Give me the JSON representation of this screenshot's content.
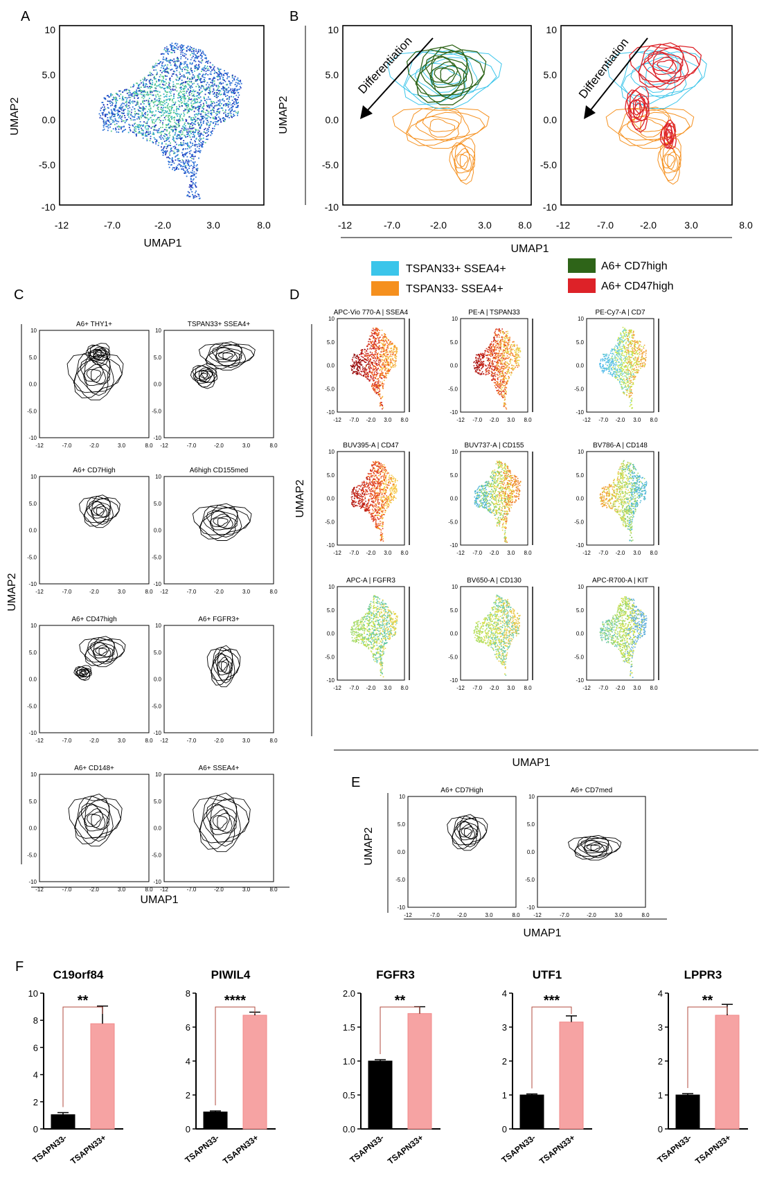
{
  "figure": {
    "panel_labels": [
      "A",
      "B",
      "C",
      "D",
      "E",
      "F"
    ]
  },
  "chart_data": [
    {
      "panel": "A",
      "type": "scatter",
      "xlabel": "UMAP1",
      "ylabel": "UMAP2",
      "xlim": [
        -12,
        8
      ],
      "ylim": [
        -10,
        10
      ],
      "x_ticks": [
        "-12",
        "-7.0",
        "-2.0",
        "3.0",
        "8.0"
      ],
      "y_ticks": [
        "10",
        "5.0",
        "0.0",
        "-5.0",
        "-10"
      ],
      "colors": [
        "#1c2fb5",
        "#2a6fd6",
        "#2fb0c8",
        "#58c98a"
      ]
    },
    {
      "panel": "B",
      "type": "contour",
      "xlabel": "UMAP1",
      "ylabel": "UMAP2",
      "arrow_label": "Differentiation",
      "xlim": [
        -12,
        8
      ],
      "ylim": [
        -10,
        10
      ],
      "x_ticks": [
        "-12",
        "-7.0",
        "-2.0",
        "3.0",
        "8.0"
      ],
      "y_ticks": [
        "10",
        "5.0",
        "0.0",
        "-5.0",
        "-10"
      ],
      "legend": [
        {
          "name": "TSPAN33+ SSEA4+",
          "color": "#3bc5ea"
        },
        {
          "name": "TSPAN33- SSEA4+",
          "color": "#f5901e"
        },
        {
          "name": "A6+ CD7high",
          "color": "#2e6418"
        },
        {
          "name": "A6+ CD47high",
          "color": "#dd2228"
        }
      ]
    },
    {
      "panel": "C",
      "type": "contour",
      "xlabel": "UMAP1",
      "ylabel": "UMAP2",
      "x_ticks": [
        "-12",
        "-7.0",
        "-2.0",
        "3.0",
        "8.0"
      ],
      "y_ticks": [
        "10",
        "5.0",
        "0.0",
        "-5.0",
        "-10"
      ],
      "subplots": [
        "A6+ THY1+",
        "TSPAN33+ SSEA4+",
        "A6+ CD7High",
        "A6high CD155med",
        "A6+ CD47high",
        "A6+ FGFR3+",
        "A6+ CD148+",
        "A6+ SSEA4+"
      ]
    },
    {
      "panel": "D",
      "type": "heatmap",
      "xlabel": "UMAP1",
      "ylabel": "UMAP2",
      "x_ticks": [
        "-12",
        "-7.0",
        "-2.0",
        "3.0",
        "8.0"
      ],
      "y_ticks": [
        "10",
        "5.0",
        "0.0",
        "-5.0",
        "-10"
      ],
      "subplots": [
        "APC-Vio 770-A | SSEA4",
        "PE-A | TSPAN33",
        "PE-Cy7-A | CD7",
        "BUV395-A | CD47",
        "BUV737-A | CD155",
        "BV786-A | CD148",
        "APC-A | FGFR3",
        "BV650-A | CD130",
        "APC-R700-A | KIT"
      ]
    },
    {
      "panel": "E",
      "type": "contour",
      "xlabel": "UMAP1",
      "ylabel": "UMAP2",
      "x_ticks": [
        "-12",
        "-7.0",
        "-2.0",
        "3.0",
        "8.0"
      ],
      "y_ticks": [
        "10",
        "5.0",
        "0.0",
        "-5.0",
        "-10"
      ],
      "subplots": [
        "A6+ CD7High",
        "A6+ CD7med"
      ]
    },
    {
      "panel": "F",
      "type": "bar",
      "categories": [
        "TSAPN33-",
        "TSAPN33+"
      ],
      "colors": [
        "#000000",
        "#f6a3a3"
      ],
      "charts": [
        {
          "title": "C19orf84",
          "values": [
            1.05,
            7.75
          ],
          "errors": [
            0.15,
            1.3
          ],
          "ylim": [
            0,
            10
          ],
          "yticks": [
            "0",
            "2",
            "4",
            "6",
            "8",
            "10"
          ],
          "sig": "**"
        },
        {
          "title": "PIWIL4",
          "values": [
            1.0,
            6.7
          ],
          "errors": [
            0.06,
            0.18
          ],
          "ylim": [
            0,
            8
          ],
          "yticks": [
            "0",
            "2",
            "4",
            "6",
            "8"
          ],
          "sig": "****"
        },
        {
          "title": "FGFR3",
          "values": [
            1.0,
            1.7
          ],
          "errors": [
            0.02,
            0.1
          ],
          "ylim": [
            0,
            2
          ],
          "yticks": [
            "0.0",
            "0.5",
            "1.0",
            "1.5",
            "2.0"
          ],
          "sig": "**"
        },
        {
          "title": "UTF1",
          "values": [
            1.0,
            3.15
          ],
          "errors": [
            0.03,
            0.18
          ],
          "ylim": [
            0,
            4
          ],
          "yticks": [
            "0",
            "1",
            "2",
            "3",
            "4"
          ],
          "sig": "***"
        },
        {
          "title": "LPPR3",
          "values": [
            1.0,
            3.35
          ],
          "errors": [
            0.04,
            0.32
          ],
          "ylim": [
            0,
            4
          ],
          "yticks": [
            "0",
            "1",
            "2",
            "3",
            "4"
          ],
          "sig": "**"
        }
      ]
    }
  ]
}
